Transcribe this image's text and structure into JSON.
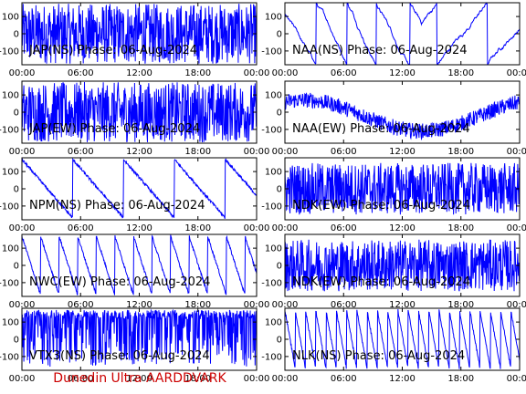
{
  "figure": {
    "credit": "Dunedin Ultra AARDDVARK",
    "colors": {
      "trace": "#0000ff",
      "axis": "#000000",
      "credit": "#cc0000",
      "background": "#ffffff"
    }
  },
  "chart_data": [
    {
      "type": "line",
      "title": "JAP(NS) Phase: 06-Aug-2024",
      "xlim": [
        0,
        24
      ],
      "ylim": [
        -180,
        180
      ],
      "x_ticks": [
        "00:00",
        "06:00",
        "12:00",
        "18:00",
        "00:00"
      ],
      "y_ticks": [
        "100",
        "0",
        "-100"
      ],
      "pattern": "saturated"
    },
    {
      "type": "line",
      "title": "NAA(NS) Phase: 06-Aug-2024",
      "xlim": [
        0,
        24
      ],
      "ylim": [
        -180,
        180
      ],
      "x_ticks": [
        "00:00",
        "06:00",
        "12:00",
        "18:00",
        "00:00"
      ],
      "y_ticks": [
        "100",
        "0",
        "-100"
      ],
      "pattern": "wrapped-drift"
    },
    {
      "type": "line",
      "title": "JAP(EW) Phase: 06-Aug-2024",
      "xlim": [
        0,
        24
      ],
      "ylim": [
        -180,
        180
      ],
      "x_ticks": [
        "00:00",
        "06:00",
        "12:00",
        "18:00",
        "00:00"
      ],
      "y_ticks": [
        "100",
        "0",
        "-100"
      ],
      "pattern": "saturated"
    },
    {
      "type": "line",
      "title": "NAA(EW) Phase: 06-Aug-2024",
      "xlim": [
        0,
        24
      ],
      "ylim": [
        -180,
        180
      ],
      "x_ticks": [
        "00:00",
        "06:00",
        "12:00",
        "18:00",
        "00:00"
      ],
      "y_ticks": [
        "100",
        "0",
        "-100"
      ],
      "pattern": "noisy-band"
    },
    {
      "type": "line",
      "title": "NPM(NS) Phase: 06-Aug-2024",
      "xlim": [
        0,
        24
      ],
      "ylim": [
        -180,
        180
      ],
      "x_ticks": [
        "00:00",
        "06:00",
        "12:00",
        "18:00",
        "00:00"
      ],
      "y_ticks": [
        "100",
        "0",
        "-100"
      ],
      "pattern": "sawtooth-slow"
    },
    {
      "type": "line",
      "title": "NDK(EW) Phase: 06-Aug-2024",
      "xlim": [
        0,
        24
      ],
      "ylim": [
        -180,
        180
      ],
      "x_ticks": [
        "00:00",
        "06:00",
        "12:00",
        "18:00",
        "00:00"
      ],
      "y_ticks": [
        "100",
        "0",
        "-100"
      ],
      "pattern": "dense-noise"
    },
    {
      "type": "line",
      "title": "NWC(EW) Phase: 06-Aug-2024",
      "xlim": [
        0,
        24
      ],
      "ylim": [
        -180,
        180
      ],
      "x_ticks": [
        "00:00",
        "06:00",
        "12:00",
        "18:00",
        "00:00"
      ],
      "y_ticks": [
        "100",
        "0",
        "-100"
      ],
      "pattern": "sawtooth-medium"
    },
    {
      "type": "line",
      "title": "NDK(EW) Phase: 06-Aug-2024",
      "xlim": [
        0,
        24
      ],
      "ylim": [
        -180,
        180
      ],
      "x_ticks": [
        "00:00",
        "06:00",
        "12:00",
        "18:00",
        "00:00"
      ],
      "y_ticks": [
        "100",
        "0",
        "-100"
      ],
      "pattern": "dense-noise"
    },
    {
      "type": "line",
      "title": "VTX3(NS) Phase: 06-Aug-2024",
      "xlim": [
        0,
        24
      ],
      "ylim": [
        -180,
        180
      ],
      "x_ticks": [
        "00:00",
        "06:00",
        "12:00",
        "18:00",
        "00:00"
      ],
      "y_ticks": [
        "100",
        "0",
        "-100"
      ],
      "pattern": "noise-spikes"
    },
    {
      "type": "line",
      "title": "NLK(NS) Phase: 06-Aug-2024",
      "xlim": [
        0,
        24
      ],
      "ylim": [
        -180,
        180
      ],
      "x_ticks": [
        "00:00",
        "06:00",
        "12:00",
        "18:00",
        "00:00"
      ],
      "y_ticks": [
        "100",
        "0",
        "-100"
      ],
      "pattern": "sawtooth-fast"
    }
  ]
}
